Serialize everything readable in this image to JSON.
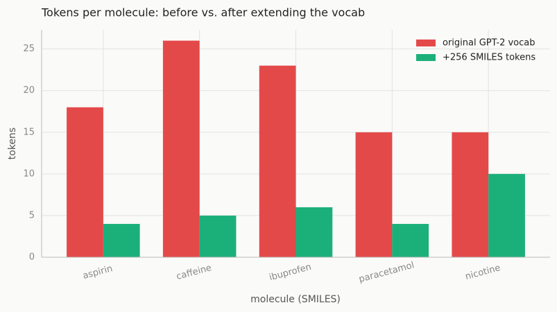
{
  "chart_data": {
    "type": "bar",
    "title": "Tokens per molecule: before vs. after extending the vocab",
    "x_label": "molecule (SMILES)",
    "y_label": "tokens",
    "categories": [
      "aspirin",
      "caffeine",
      "ibuprofen",
      "paracetamol",
      "nicotine"
    ],
    "series": [
      {
        "name": "original GPT-2 vocab",
        "color": "#e4494a",
        "values": [
          18,
          26,
          23,
          15,
          15
        ]
      },
      {
        "name": "+256 SMILES tokens",
        "color": "#1bb07a",
        "values": [
          4,
          5,
          6,
          4,
          10
        ]
      }
    ],
    "ylim": [
      0,
      27.3
    ],
    "yticks": [
      0,
      5,
      10,
      15,
      20,
      25
    ],
    "grid": true,
    "legend": "upper right"
  }
}
